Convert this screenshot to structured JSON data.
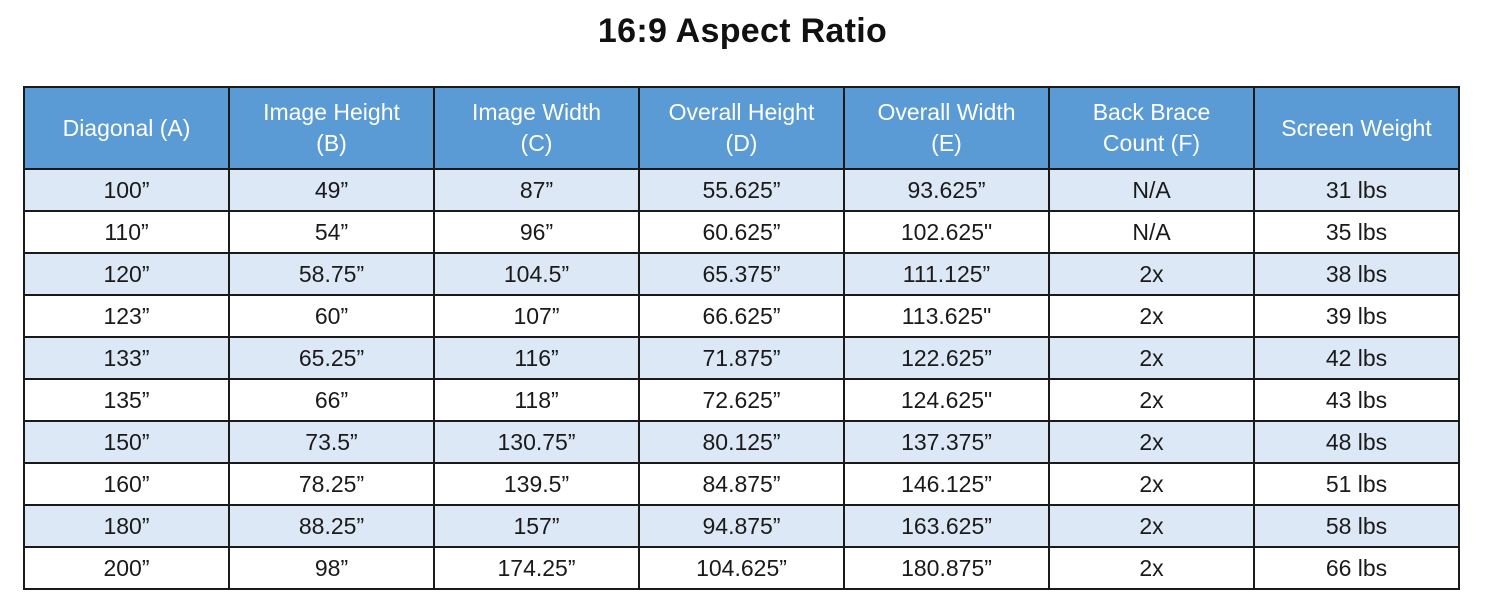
{
  "title": "16:9 Aspect Ratio",
  "columns": [
    [
      "Diagonal (A)"
    ],
    [
      "Image Height",
      "(B)"
    ],
    [
      "Image Width",
      "(C)"
    ],
    [
      "Overall Height",
      "(D)"
    ],
    [
      "Overall Width",
      "(E)"
    ],
    [
      "Back Brace",
      "Count (F)"
    ],
    [
      "Screen Weight"
    ]
  ],
  "rows": [
    [
      "100”",
      "49”",
      "87”",
      "55.625”",
      "93.625”",
      "N/A",
      "31 lbs"
    ],
    [
      "110”",
      "54”",
      "96”",
      "60.625”",
      "102.625\"",
      "N/A",
      "35 lbs"
    ],
    [
      "120”",
      "58.75”",
      "104.5”",
      "65.375”",
      "111.125”",
      "2x",
      "38 lbs"
    ],
    [
      "123”",
      "60”",
      "107”",
      "66.625”",
      "113.625\"",
      "2x",
      "39 lbs"
    ],
    [
      "133”",
      "65.25”",
      "116”",
      "71.875”",
      "122.625”",
      "2x",
      "42 lbs"
    ],
    [
      "135”",
      "66”",
      "118”",
      "72.625”",
      "124.625\"",
      "2x",
      "43 lbs"
    ],
    [
      "150”",
      "73.5”",
      "130.75”",
      "80.125”",
      "137.375”",
      "2x",
      "48 lbs"
    ],
    [
      "160”",
      "78.25”",
      "139.5”",
      "84.875”",
      "146.125”",
      "2x",
      "51 lbs"
    ],
    [
      "180”",
      "88.25”",
      "157”",
      "94.875”",
      "163.625”",
      "2x",
      "58 lbs"
    ],
    [
      "200”",
      "98”",
      "174.25”",
      "104.625”",
      "180.875”",
      "2x",
      "66 lbs"
    ]
  ],
  "colors": {
    "header_bg": "#5b9bd5",
    "stripe_bg": "#dce8f5"
  }
}
